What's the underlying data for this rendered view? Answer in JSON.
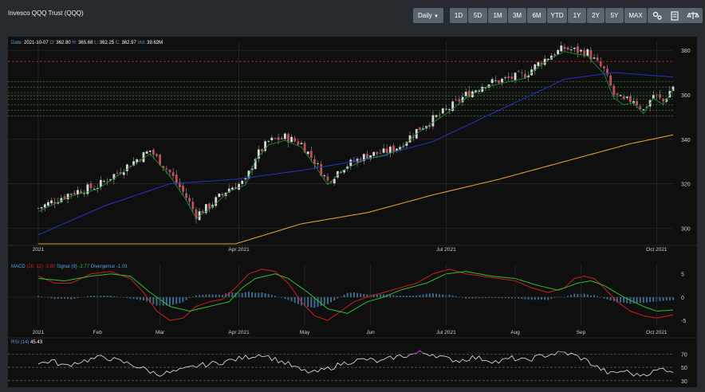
{
  "header": {
    "title": "Invesco QQQ Trust (QQQ)",
    "interval_label": "Daily",
    "ranges": [
      "1D",
      "5D",
      "1M",
      "3M",
      "6M",
      "YTD",
      "1Y",
      "2Y",
      "5Y",
      "MAX"
    ],
    "tools": [
      "settings-icon",
      "calculator-icon",
      "scale-icon"
    ]
  },
  "chart_data": [
    {
      "type": "candlestick",
      "info": {
        "date_label": "Date:",
        "date": "2021-10-07",
        "open_label": "O:",
        "open": "362.80",
        "high_label": "H:",
        "high": "365.68",
        "low_label": "L:",
        "low": "362.25",
        "close_label": "C:",
        "close": "362.97",
        "vol_label": "Vol:",
        "volume": "39.62M"
      },
      "x_ticks": [
        {
          "label": "2021",
          "i": 0
        },
        {
          "label": "Apr 2021",
          "i": 61
        },
        {
          "label": "Jul 2021",
          "i": 124
        },
        {
          "label": "Oct 2021",
          "i": 188
        }
      ],
      "ylim": [
        293,
        384
      ],
      "y_ticks": [
        300,
        320,
        340,
        360,
        380
      ],
      "series": [
        "price",
        "sma50",
        "sma200",
        "levels"
      ],
      "resistance_line": 375,
      "levels": [
        366,
        363.5,
        361,
        359.5,
        358,
        355.5,
        353,
        350.5
      ],
      "anchors": [
        [
          0,
          309
        ],
        [
          10,
          316
        ],
        [
          18,
          319
        ],
        [
          26,
          327
        ],
        [
          30,
          331
        ],
        [
          34,
          335
        ],
        [
          40,
          325
        ],
        [
          45,
          314
        ],
        [
          48,
          306
        ],
        [
          52,
          310
        ],
        [
          58,
          318
        ],
        [
          63,
          321
        ],
        [
          66,
          332
        ],
        [
          70,
          339
        ],
        [
          75,
          341
        ],
        [
          80,
          338
        ],
        [
          84,
          330
        ],
        [
          88,
          321
        ],
        [
          92,
          327
        ],
        [
          96,
          330
        ],
        [
          100,
          333
        ],
        [
          105,
          334
        ],
        [
          110,
          337
        ],
        [
          115,
          344
        ],
        [
          120,
          349
        ],
        [
          125,
          354
        ],
        [
          130,
          360
        ],
        [
          136,
          365
        ],
        [
          142,
          367
        ],
        [
          148,
          369
        ],
        [
          152,
          374
        ],
        [
          156,
          378
        ],
        [
          160,
          381
        ],
        [
          163,
          380
        ],
        [
          167,
          379
        ],
        [
          170,
          374
        ],
        [
          172,
          371
        ],
        [
          175,
          360
        ],
        [
          178,
          357
        ],
        [
          181,
          358
        ],
        [
          184,
          353
        ],
        [
          187,
          360
        ],
        [
          190,
          357
        ],
        [
          193,
          364
        ]
      ],
      "sma50_anchors": [
        [
          0,
          297
        ],
        [
          20,
          310
        ],
        [
          40,
          320
        ],
        [
          60,
          322
        ],
        [
          80,
          326
        ],
        [
          100,
          331
        ],
        [
          120,
          339
        ],
        [
          140,
          353
        ],
        [
          160,
          367
        ],
        [
          175,
          370
        ],
        [
          193,
          368
        ]
      ],
      "sma200_anchors": [
        [
          0,
          270
        ],
        [
          40,
          283
        ],
        [
          60,
          292
        ],
        [
          80,
          302
        ],
        [
          100,
          307
        ],
        [
          120,
          315
        ],
        [
          140,
          322
        ],
        [
          160,
          330
        ],
        [
          180,
          338
        ],
        [
          193,
          342
        ]
      ]
    },
    {
      "type": "macd",
      "label": "MACD",
      "params": "(26, 12)",
      "macd_value": "-3.80",
      "signal_label": "Signal (9)",
      "signal_value": "-2.77",
      "divergence_label": "Divergence",
      "divergence_value": "-1.03",
      "ylim": [
        -6,
        7
      ],
      "y_ticks": [
        5,
        0,
        -5
      ],
      "x_ticks": [
        {
          "label": "2021",
          "i": 0
        },
        {
          "label": "Feb",
          "i": 18
        },
        {
          "label": "Mar",
          "i": 37
        },
        {
          "label": "Apr 2021",
          "i": 61
        },
        {
          "label": "May",
          "i": 81
        },
        {
          "label": "Jun",
          "i": 101
        },
        {
          "label": "Jul 2021",
          "i": 124
        },
        {
          "label": "Aug",
          "i": 145
        },
        {
          "label": "Sep",
          "i": 165
        },
        {
          "label": "Oct 2021",
          "i": 188
        }
      ],
      "macd_anchors": [
        [
          0,
          4.5
        ],
        [
          5,
          3
        ],
        [
          10,
          3
        ],
        [
          16,
          5
        ],
        [
          22,
          5.5
        ],
        [
          28,
          4
        ],
        [
          32,
          1
        ],
        [
          36,
          -3
        ],
        [
          40,
          -5
        ],
        [
          44,
          -4.5
        ],
        [
          48,
          -2
        ],
        [
          52,
          -1
        ],
        [
          56,
          -0.5
        ],
        [
          60,
          2
        ],
        [
          64,
          5
        ],
        [
          68,
          6
        ],
        [
          72,
          5.5
        ],
        [
          76,
          3
        ],
        [
          80,
          -1
        ],
        [
          84,
          -4
        ],
        [
          88,
          -5
        ],
        [
          92,
          -3
        ],
        [
          96,
          -1
        ],
        [
          100,
          0
        ],
        [
          105,
          1
        ],
        [
          110,
          2
        ],
        [
          115,
          3
        ],
        [
          120,
          5
        ],
        [
          125,
          6
        ],
        [
          130,
          5
        ],
        [
          135,
          4.5
        ],
        [
          140,
          4
        ],
        [
          145,
          3.5
        ],
        [
          150,
          2
        ],
        [
          155,
          1
        ],
        [
          160,
          2
        ],
        [
          163,
          4
        ],
        [
          166,
          4.5
        ],
        [
          169,
          4
        ],
        [
          172,
          2
        ],
        [
          176,
          -1
        ],
        [
          180,
          -3
        ],
        [
          184,
          -4
        ],
        [
          188,
          -4.5
        ],
        [
          193,
          -3.8
        ]
      ],
      "signal_anchors": [
        [
          0,
          4
        ],
        [
          8,
          3.5
        ],
        [
          16,
          4.5
        ],
        [
          22,
          5
        ],
        [
          28,
          4.5
        ],
        [
          34,
          1
        ],
        [
          40,
          -2
        ],
        [
          46,
          -3
        ],
        [
          52,
          -2
        ],
        [
          58,
          -1
        ],
        [
          62,
          2
        ],
        [
          66,
          4
        ],
        [
          72,
          5
        ],
        [
          76,
          4
        ],
        [
          82,
          1
        ],
        [
          88,
          -2.5
        ],
        [
          94,
          -3.5
        ],
        [
          100,
          -1
        ],
        [
          105,
          0
        ],
        [
          110,
          1.5
        ],
        [
          118,
          3
        ],
        [
          124,
          5
        ],
        [
          130,
          5.5
        ],
        [
          138,
          4.5
        ],
        [
          145,
          4
        ],
        [
          152,
          2.5
        ],
        [
          158,
          1.5
        ],
        [
          164,
          3
        ],
        [
          168,
          3.5
        ],
        [
          172,
          2.5
        ],
        [
          178,
          0
        ],
        [
          184,
          -2
        ],
        [
          188,
          -3
        ],
        [
          193,
          -2.77
        ]
      ]
    },
    {
      "type": "rsi",
      "label": "RSI",
      "params": "(14)",
      "value": "45.43",
      "ylim": [
        25,
        80
      ],
      "levels": [
        70,
        50,
        30
      ],
      "anchors": [
        [
          0,
          55
        ],
        [
          4,
          60
        ],
        [
          8,
          52
        ],
        [
          12,
          58
        ],
        [
          16,
          62
        ],
        [
          20,
          66
        ],
        [
          24,
          60
        ],
        [
          28,
          55
        ],
        [
          32,
          48
        ],
        [
          36,
          40
        ],
        [
          40,
          42
        ],
        [
          44,
          46
        ],
        [
          48,
          52
        ],
        [
          52,
          55
        ],
        [
          56,
          58
        ],
        [
          60,
          62
        ],
        [
          64,
          66
        ],
        [
          68,
          70
        ],
        [
          72,
          62
        ],
        [
          76,
          55
        ],
        [
          80,
          45
        ],
        [
          84,
          42
        ],
        [
          88,
          48
        ],
        [
          92,
          55
        ],
        [
          96,
          60
        ],
        [
          100,
          62
        ],
        [
          104,
          58
        ],
        [
          108,
          65
        ],
        [
          112,
          68
        ],
        [
          116,
          72
        ],
        [
          120,
          70
        ],
        [
          124,
          63
        ],
        [
          128,
          60
        ],
        [
          132,
          65
        ],
        [
          136,
          62
        ],
        [
          140,
          58
        ],
        [
          144,
          64
        ],
        [
          148,
          60
        ],
        [
          152,
          66
        ],
        [
          156,
          70
        ],
        [
          160,
          72
        ],
        [
          163,
          68
        ],
        [
          166,
          62
        ],
        [
          170,
          50
        ],
        [
          174,
          40
        ],
        [
          178,
          45
        ],
        [
          182,
          38
        ],
        [
          186,
          42
        ],
        [
          190,
          48
        ],
        [
          193,
          45
        ]
      ]
    }
  ]
}
